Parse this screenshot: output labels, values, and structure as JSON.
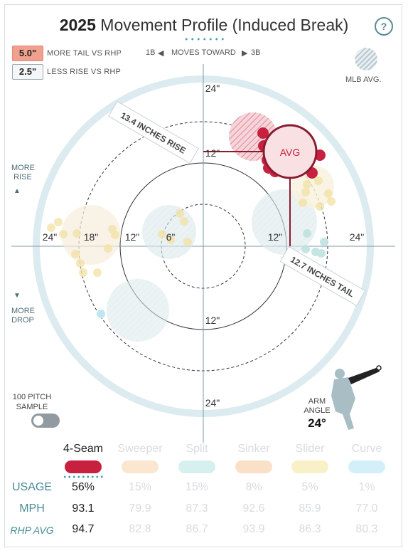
{
  "title": {
    "year": "2025",
    "text": "Movement Profile (Induced Break)"
  },
  "help": "?",
  "badges": [
    {
      "value": "5.0\"",
      "label": "MORE TAIL VS RHP"
    },
    {
      "value": "2.5\"",
      "label": "LESS RISE VS RHP"
    }
  ],
  "moves": {
    "left": "1B",
    "center": "MOVES TOWARD",
    "right": "3B"
  },
  "legend": {
    "mlb_avg": "MLB AVG."
  },
  "side": {
    "more_rise": "MORE\nRISE",
    "more_drop": "MORE\nDROP"
  },
  "sample": {
    "label": "100 PITCH SAMPLE",
    "enabled": false
  },
  "arm": {
    "label": "ARM ANGLE",
    "value": "24°"
  },
  "plot": {
    "ring_labels": [
      "24\"",
      "18\"",
      "12\"",
      "6\"",
      "12\"",
      "24\"",
      "12\"",
      "12\"",
      "24\"",
      "24\""
    ],
    "avg_label": "AVG",
    "rise_label": "13.4 INCHES RISE",
    "tail_label": "12.7 INCHES TAIL"
  },
  "colors": {
    "four_seam": "#c8203f",
    "sweeper": "#f5c99a",
    "split": "#8fd3d3",
    "sinker": "#f5b87a",
    "slider": "#f3e48c",
    "curve": "#8fd8ec"
  },
  "pitches": [
    {
      "name": "4-Seam",
      "usage": "56%",
      "mph": "93.1",
      "rhp_avg": "94.7",
      "color": "#c8203f",
      "selected": true
    },
    {
      "name": "Sweeper",
      "usage": "15%",
      "mph": "79.9",
      "rhp_avg": "82.8",
      "color": "#fbe6d0",
      "selected": false
    },
    {
      "name": "Split",
      "usage": "15%",
      "mph": "87.3",
      "rhp_avg": "86.7",
      "color": "#d6efef",
      "selected": false
    },
    {
      "name": "Sinker",
      "usage": "8%",
      "mph": "92.6",
      "rhp_avg": "93.9",
      "color": "#fbe0c8",
      "selected": false
    },
    {
      "name": "Slider",
      "usage": "5%",
      "mph": "85.9",
      "rhp_avg": "86.3",
      "color": "#f8f1c8",
      "selected": false
    },
    {
      "name": "Curve",
      "usage": "1%",
      "mph": "77.0",
      "rhp_avg": "80.3",
      "color": "#d3f0f8",
      "selected": false
    }
  ],
  "rows": {
    "usage": "USAGE",
    "mph": "MPH",
    "rhp_avg": "RHP AVG"
  }
}
